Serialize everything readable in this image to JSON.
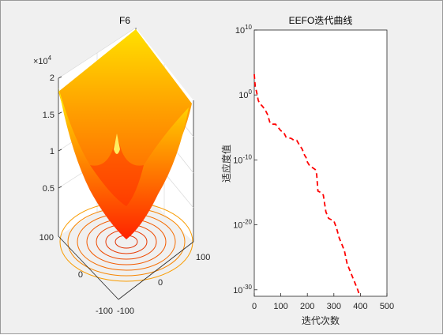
{
  "figure_background": "#f0f0f0",
  "chart_data": [
    {
      "type": "surface",
      "title": "F6",
      "z_exponent_label": "×10",
      "z_exponent_power": "4",
      "x_ticks": [
        "-100",
        "0",
        "100"
      ],
      "y_ticks": [
        "-100",
        "0",
        "100"
      ],
      "z_ticks": [
        "0.5",
        "1",
        "1.5",
        "2"
      ],
      "xlim": [
        -100,
        100
      ],
      "ylim": [
        -100,
        100
      ],
      "zlim": [
        0,
        20000
      ],
      "function": "sum of squares of floor(x+0.5)",
      "colormap": "autumn",
      "contour_on_floor": true,
      "grid": true
    },
    {
      "type": "line",
      "title": "EEFO迭代曲线",
      "xlabel": "迭代次数",
      "ylabel": "适应度值",
      "x_ticks": [
        "0",
        "100",
        "200",
        "300",
        "400",
        "500"
      ],
      "y_tick_base": "10",
      "y_tick_exponents": [
        "-30",
        "-20",
        "-10",
        "0",
        "10"
      ],
      "xlim": [
        0,
        500
      ],
      "ylim_log10": [
        -31,
        10
      ],
      "yscale": "log",
      "line_color": "#ff0000",
      "line_style": "dashed",
      "series": [
        {
          "x": [
            0,
            2,
            4,
            6,
            8,
            10,
            15,
            20,
            25,
            30,
            40,
            50,
            60,
            70,
            80,
            100,
            110,
            120,
            140,
            150,
            160,
            170,
            180,
            190,
            195,
            200,
            210,
            220,
            230,
            235,
            240,
            250,
            260,
            270,
            280,
            290,
            300,
            310,
            320,
            330,
            340,
            350,
            360,
            370,
            380,
            390,
            398
          ],
          "y": [
            3.2,
            2.0,
            1.3,
            0.9,
            0.6,
            0.2,
            -0.8,
            -1.3,
            -1.5,
            -1.7,
            -2.2,
            -3.0,
            -4.4,
            -4.5,
            -4.5,
            -5.5,
            -5.7,
            -6.5,
            -6.7,
            -7.0,
            -7.0,
            -7.7,
            -8.3,
            -9.3,
            -9.6,
            -10.3,
            -11.0,
            -11.2,
            -11.5,
            -12.2,
            -14.8,
            -15.0,
            -15.4,
            -18.0,
            -19.0,
            -19.2,
            -19.4,
            -20.5,
            -22.0,
            -23.0,
            -24.0,
            -26.0,
            -27.0,
            -28.0,
            -29.0,
            -30.0,
            -31.0
          ]
        }
      ]
    }
  ]
}
